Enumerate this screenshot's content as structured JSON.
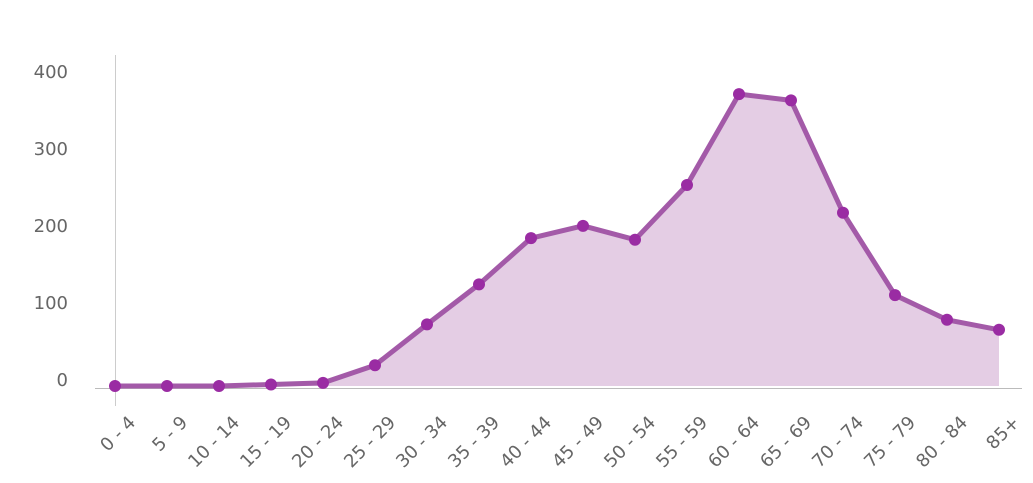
{
  "chart_data": {
    "type": "area",
    "categories": [
      "0 - 4",
      "5 - 9",
      "10 - 14",
      "15 - 19",
      "20 - 24",
      "25 - 29",
      "30 - 34",
      "35 - 39",
      "40 - 44",
      "45 - 49",
      "50 - 54",
      "55 - 59",
      "60 - 64",
      "65 - 69",
      "70 - 74",
      "75 - 79",
      "80 - 84",
      "85+"
    ],
    "series": [
      {
        "color": "#a35aa8",
        "marker_color": "#9a2ca3",
        "fill_color": "#e4cde4",
        "values": [
          0,
          0,
          0,
          2,
          4,
          27,
          80,
          132,
          192,
          208,
          190,
          261,
          379,
          371,
          225,
          118,
          86,
          73
        ]
      }
    ],
    "ylim": [
      0,
      400
    ],
    "yticks": [
      0,
      100,
      200,
      300,
      400
    ],
    "grid": false
  }
}
